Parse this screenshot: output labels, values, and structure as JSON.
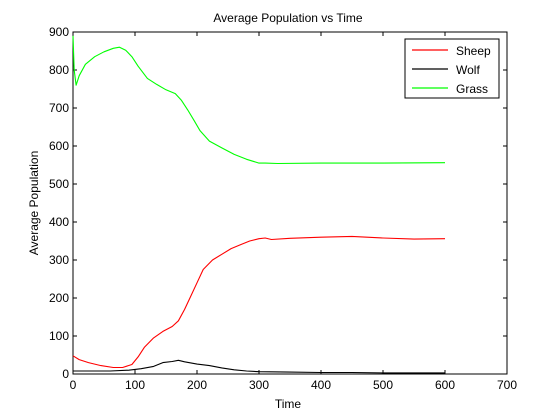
{
  "chart_data": {
    "type": "line",
    "title": "Average Population vs Time",
    "xlabel": "Time",
    "ylabel": "Average Population",
    "xlim": [
      0,
      700
    ],
    "ylim": [
      0,
      900
    ],
    "xticks": [
      0,
      100,
      200,
      300,
      400,
      500,
      600,
      700
    ],
    "yticks": [
      0,
      100,
      200,
      300,
      400,
      500,
      600,
      700,
      800,
      900
    ],
    "grid": false,
    "legend_position": "top-right",
    "series": [
      {
        "name": "Sheep",
        "color": "#ff0000",
        "x": [
          0,
          10,
          25,
          45,
          65,
          80,
          95,
          105,
          115,
          130,
          145,
          160,
          170,
          180,
          190,
          200,
          210,
          225,
          240,
          255,
          270,
          285,
          300,
          310,
          320,
          350,
          400,
          450,
          500,
          550,
          600
        ],
        "y": [
          48,
          38,
          30,
          22,
          17,
          17,
          25,
          45,
          70,
          95,
          112,
          125,
          140,
          170,
          205,
          240,
          275,
          300,
          315,
          330,
          340,
          350,
          356,
          358,
          354,
          357,
          360,
          362,
          358,
          355,
          356
        ]
      },
      {
        "name": "Wolf",
        "color": "#000000",
        "x": [
          0,
          30,
          60,
          90,
          110,
          130,
          145,
          160,
          170,
          180,
          200,
          220,
          240,
          260,
          280,
          300,
          350,
          400,
          450,
          500,
          550,
          600
        ],
        "y": [
          8,
          8,
          8,
          10,
          14,
          20,
          30,
          33,
          36,
          32,
          26,
          22,
          16,
          11,
          8,
          6,
          5,
          4,
          4,
          3,
          3,
          3
        ]
      },
      {
        "name": "Grass",
        "color": "#00ff00",
        "x": [
          0,
          2,
          5,
          10,
          20,
          35,
          50,
          65,
          75,
          85,
          95,
          105,
          120,
          135,
          150,
          165,
          175,
          185,
          195,
          205,
          220,
          240,
          260,
          280,
          300,
          310,
          330,
          400,
          500,
          600
        ],
        "y": [
          890,
          800,
          760,
          785,
          815,
          835,
          848,
          857,
          860,
          852,
          835,
          810,
          778,
          762,
          748,
          738,
          720,
          695,
          668,
          640,
          613,
          595,
          578,
          565,
          555,
          555,
          554,
          555,
          555,
          556
        ]
      }
    ]
  }
}
